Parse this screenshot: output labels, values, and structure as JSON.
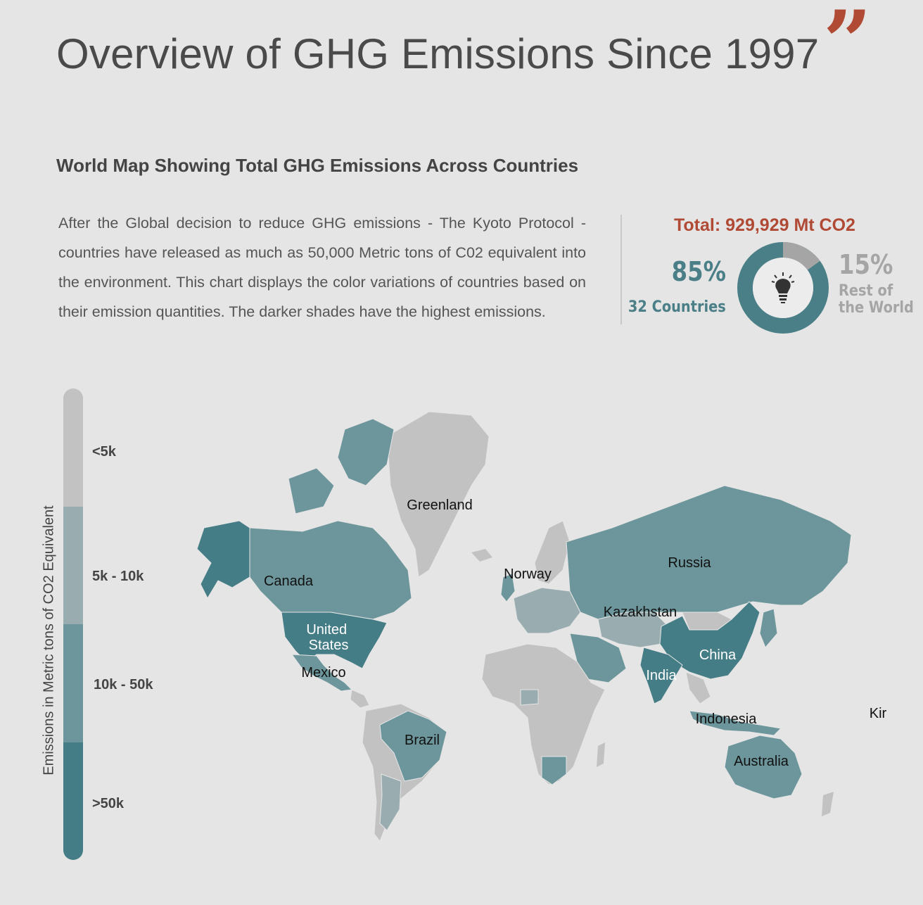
{
  "header": {
    "title": "Overview of GHG Emissions Since 1997",
    "quote_mark": "”"
  },
  "section": {
    "subtitle": "World Map Showing Total GHG Emissions Across Countries",
    "description": "After the Global decision to reduce GHG emissions - The Kyoto Protocol - countries have released as much as 50,000 Metric tons of C02 equivalent into the environment. This chart displays the color variations of countries based on their emission quantities. The darker shades have the highest emissions."
  },
  "summary": {
    "total": "Total: 929,929 Mt CO2",
    "main_pct": "85%",
    "main_label": "32 Countries",
    "rest_pct": "15%",
    "rest_label": "Rest of the World",
    "main_share": 0.85,
    "rest_share": 0.15,
    "icon": "lightbulb-icon",
    "main_color": "#4a7f88",
    "rest_color": "#a5a5a5"
  },
  "legend": {
    "axis_label": "Emissions in Metric tons of CO2 Equivalent",
    "bins": [
      {
        "label": "<5k",
        "color": "#c2c2c2"
      },
      {
        "label": "5k - 10k",
        "color": "#99adb0"
      },
      {
        "label": "10k - 50k",
        "color": "#6c969b"
      },
      {
        "label": ">50k",
        "color": "#457d86"
      }
    ]
  },
  "map": {
    "labels": [
      {
        "text": "Greenland",
        "bin": "<5k"
      },
      {
        "text": "Norway",
        "bin": "<5k"
      },
      {
        "text": "Russia",
        "bin": "10k - 50k"
      },
      {
        "text": "Canada",
        "bin": "10k - 50k"
      },
      {
        "text": "Kazakhstan",
        "bin": "10k - 50k"
      },
      {
        "text": "United States",
        "bin": ">50k"
      },
      {
        "text": "China",
        "bin": ">50k"
      },
      {
        "text": "Mexico",
        "bin": "10k - 50k"
      },
      {
        "text": "India",
        "bin": ">50k"
      },
      {
        "text": "Indonesia",
        "bin": "10k - 50k"
      },
      {
        "text": "Kir",
        "bin": "<5k"
      },
      {
        "text": "Brazil",
        "bin": "10k - 50k"
      },
      {
        "text": "Australia",
        "bin": "10k - 50k"
      }
    ]
  }
}
